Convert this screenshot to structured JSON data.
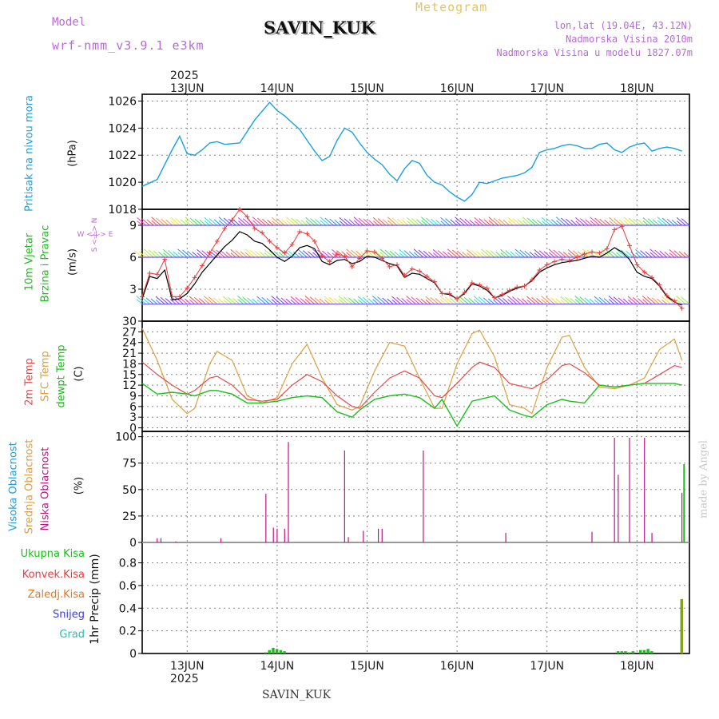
{
  "header": {
    "model_label": "Model",
    "model_name": "wrf-nmm_v3.9.1 e3km",
    "station": "SAVIN_KUK",
    "meteogram": "Meteogram",
    "lonlat": "lon,lat (19.04E, 43.12N)",
    "altitude": "Nadmorska Visina 2010m",
    "model_altitude": "Nadmorska Visina u modelu 1827.07m",
    "footer_station": "SAVIN_KUK",
    "made_by": "made by Angel",
    "year_top": "2025",
    "year_bottom": "2025"
  },
  "colors": {
    "pressure": "#1aa0e0",
    "wind_speed": "#000000",
    "wind_gust": "#e83c3c",
    "temp_2m": "#e84848",
    "temp_sfc": "#dca040",
    "dewpoint": "#18c018",
    "cloud_high": "#1aa0e0",
    "cloud_mid": "#dca040",
    "cloud_low": "#c0108a",
    "precip_total": "#18c018",
    "precip_conv": "#e83c3c",
    "precip_frozen": "#e87820",
    "snow": "#3c3ce0",
    "graupel": "#20c0c0"
  },
  "panels": {
    "pressure": {
      "label": "Pritisak na nivou mora",
      "unit": "(hPa)"
    },
    "wind": {
      "label1": "10m Vjetar",
      "label2": "Brzina i Pravac",
      "unit": "(m/s)",
      "compass": "W <-|-> E",
      "compass_v": "S <-|-> N"
    },
    "temp": {
      "label1": "2m Temp",
      "label2": "SFC Temp",
      "label3": "dewpt Temp",
      "unit": "(C)"
    },
    "cloud": {
      "label1": "Visoka Oblacnost",
      "label2": "Srednja Oblacnost",
      "label3": "Niska Oblacnost",
      "unit": "(%)"
    },
    "precip": {
      "legend": [
        "Ukupna Kisa",
        "Konvek.Kisa",
        "Zaledj.Kisa",
        "Snijeg",
        "Grad"
      ],
      "unit": "1hr Precip (mm)"
    }
  },
  "chart_data": [
    {
      "type": "line",
      "title": "Pritisak na nivou mora",
      "ylabel": "(hPa)",
      "x_unit": "hours from 12 JUN 12:00",
      "ylim": [
        1018,
        1026.5
      ],
      "yticks": [
        1018,
        1020,
        1022,
        1024,
        1026
      ],
      "xticks": [
        "13JUN",
        "14JUN",
        "15JUN",
        "16JUN",
        "17JUN",
        "18JUN"
      ],
      "series": [
        {
          "name": "MSLP",
          "x": [
            0,
            4,
            8,
            10,
            12,
            14,
            16,
            18,
            20,
            22,
            26,
            30,
            34,
            36,
            38,
            40,
            42,
            44,
            46,
            48,
            50,
            52,
            54,
            56,
            58,
            60,
            62,
            64,
            66,
            68,
            70,
            72,
            74,
            76,
            78,
            80,
            82,
            84,
            86,
            88,
            90,
            92,
            94,
            96,
            98,
            100,
            102,
            104,
            106,
            108,
            110,
            112,
            114,
            116,
            118,
            120,
            122,
            124,
            126,
            128,
            130,
            132,
            134,
            136,
            138,
            140,
            142,
            144
          ],
          "values": [
            1019.7,
            1020.2,
            1022.4,
            1023.4,
            1022.1,
            1022.0,
            1022.4,
            1022.9,
            1023.0,
            1022.8,
            1022.9,
            1024.6,
            1025.9,
            1025.3,
            1024.9,
            1024.4,
            1023.9,
            1023.1,
            1022.3,
            1021.6,
            1021.9,
            1023.1,
            1024.0,
            1023.7,
            1022.9,
            1022.2,
            1021.7,
            1021.3,
            1020.6,
            1020.1,
            1021.0,
            1021.6,
            1021.4,
            1020.5,
            1020.0,
            1019.8,
            1019.3,
            1018.9,
            1018.6,
            1019.1,
            1020.0,
            1019.9,
            1020.1,
            1020.3,
            1020.4,
            1020.5,
            1020.7,
            1021.1,
            1022.2,
            1022.4,
            1022.5,
            1022.7,
            1022.8,
            1022.7,
            1022.5,
            1022.5,
            1022.8,
            1022.9,
            1022.4,
            1022.2,
            1022.6,
            1022.8,
            1022.9,
            1022.3,
            1022.5,
            1022.6,
            1022.5,
            1022.3
          ]
        }
      ]
    },
    {
      "type": "line",
      "title": "10m Vjetar Brzina i Pravac",
      "ylabel": "(m/s)",
      "ylim": [
        0,
        10.5
      ],
      "yticks": [
        3,
        6,
        9
      ],
      "series": [
        {
          "name": "wind speed",
          "x": [
            0,
            2,
            4,
            6,
            8,
            10,
            12,
            14,
            16,
            18,
            20,
            22,
            24,
            26,
            28,
            30,
            32,
            34,
            36,
            38,
            40,
            42,
            44,
            46,
            48,
            50,
            52,
            54,
            56,
            58,
            60,
            62,
            64,
            66,
            68,
            70,
            72,
            74,
            76,
            78,
            80,
            82,
            84,
            86,
            88,
            90,
            92,
            94,
            96,
            98,
            100,
            102,
            104,
            106,
            108,
            110,
            112,
            114,
            116,
            118,
            120,
            122,
            124,
            126,
            128,
            130,
            132,
            134,
            136,
            138,
            140,
            142,
            144
          ],
          "values": [
            2.1,
            4.2,
            4.0,
            4.8,
            2.0,
            2.1,
            2.6,
            3.5,
            4.6,
            5.4,
            6.2,
            7.0,
            7.6,
            8.4,
            8.1,
            7.5,
            7.3,
            6.7,
            6.0,
            5.6,
            6.1,
            6.9,
            7.1,
            6.8,
            5.6,
            5.3,
            5.7,
            5.8,
            5.4,
            5.6,
            6.1,
            6.0,
            5.7,
            5.4,
            5.2,
            4.1,
            4.5,
            4.4,
            4.0,
            3.6,
            2.6,
            2.5,
            2.1,
            2.6,
            3.5,
            3.3,
            2.9,
            2.2,
            2.4,
            2.8,
            3.1,
            3.3,
            3.8,
            4.6,
            5.0,
            5.3,
            5.5,
            5.6,
            5.7,
            5.9,
            6.1,
            6.0,
            6.4,
            6.9,
            6.5,
            5.8,
            4.6,
            4.2,
            4.0,
            3.3,
            2.3,
            1.8,
            1.5
          ]
        },
        {
          "name": "wind gust",
          "x": [
            0,
            2,
            4,
            6,
            8,
            10,
            12,
            14,
            16,
            18,
            20,
            22,
            24,
            26,
            28,
            30,
            32,
            34,
            36,
            38,
            40,
            42,
            44,
            46,
            48,
            50,
            52,
            54,
            56,
            58,
            60,
            62,
            64,
            66,
            68,
            70,
            72,
            74,
            76,
            78,
            80,
            82,
            84,
            86,
            88,
            90,
            92,
            94,
            96,
            98,
            100,
            102,
            104,
            106,
            108,
            110,
            112,
            114,
            116,
            118,
            120,
            122,
            124,
            126,
            128,
            130,
            132,
            134,
            136,
            138,
            140,
            142,
            144
          ],
          "values": [
            2.3,
            4.5,
            4.4,
            5.8,
            2.3,
            2.3,
            3.1,
            4.1,
            5.2,
            6.4,
            7.5,
            8.7,
            9.5,
            10.5,
            9.8,
            8.7,
            8.3,
            7.5,
            6.9,
            6.4,
            7.2,
            8.4,
            8.2,
            7.5,
            6.1,
            5.6,
            6.3,
            6.1,
            5.1,
            5.9,
            6.6,
            6.5,
            5.9,
            5.1,
            5.3,
            4.3,
            4.9,
            4.7,
            4.2,
            3.7,
            2.6,
            2.6,
            2.1,
            2.7,
            3.6,
            3.4,
            3.1,
            2.2,
            2.5,
            2.9,
            3.2,
            3.3,
            3.9,
            4.8,
            5.3,
            5.6,
            5.8,
            5.7,
            6.0,
            6.3,
            6.5,
            6.4,
            6.8,
            8.6,
            8.9,
            7.1,
            5.3,
            4.6,
            4.1,
            3.4,
            2.4,
            1.9,
            1.2
          ]
        }
      ]
    },
    {
      "type": "line",
      "title": "2m Temp / SFC Temp / dewpt Temp",
      "ylabel": "(C)",
      "ylim": [
        -1,
        30
      ],
      "yticks": [
        0,
        3,
        6,
        9,
        12,
        15,
        18,
        21,
        24,
        27,
        30
      ],
      "series": [
        {
          "name": "2m Temp",
          "x": [
            0,
            4,
            8,
            12,
            14,
            18,
            20,
            24,
            28,
            32,
            36,
            40,
            44,
            48,
            52,
            56,
            58,
            62,
            66,
            70,
            74,
            78,
            80,
            84,
            88,
            90,
            94,
            98,
            102,
            104,
            108,
            112,
            114,
            118,
            122,
            126,
            130,
            134,
            138,
            142,
            144
          ],
          "values": [
            18.5,
            15.0,
            12.0,
            9.5,
            10.5,
            14.0,
            14.5,
            12.0,
            8.0,
            7.5,
            8.0,
            12.0,
            15.0,
            13.0,
            9.0,
            6.0,
            5.5,
            10.0,
            14.0,
            16.0,
            14.0,
            9.0,
            8.5,
            12.5,
            17.0,
            18.5,
            17.0,
            12.5,
            11.5,
            11.0,
            13.5,
            17.5,
            18.0,
            15.5,
            12.0,
            11.5,
            12.0,
            12.5,
            15.0,
            17.5,
            17.0
          ]
        },
        {
          "name": "SFC Temp",
          "x": [
            0,
            4,
            8,
            12,
            14,
            18,
            20,
            24,
            28,
            32,
            36,
            40,
            44,
            48,
            52,
            56,
            58,
            62,
            66,
            70,
            74,
            78,
            80,
            84,
            88,
            90,
            94,
            98,
            102,
            104,
            108,
            112,
            114,
            118,
            122,
            126,
            130,
            134,
            138,
            142,
            144
          ],
          "values": [
            28.0,
            19.0,
            8.0,
            4.0,
            5.5,
            18.0,
            21.5,
            19.0,
            9.0,
            7.0,
            8.5,
            18.0,
            23.5,
            14.0,
            6.5,
            5.0,
            6.0,
            16.0,
            24.0,
            23.0,
            14.0,
            5.5,
            5.5,
            18.0,
            26.5,
            27.5,
            20.0,
            6.5,
            5.5,
            4.0,
            17.0,
            25.5,
            26.0,
            17.0,
            11.5,
            11.0,
            12.0,
            14.0,
            22.0,
            25.0,
            19.0
          ]
        },
        {
          "name": "dewpt Temp",
          "x": [
            0,
            4,
            8,
            12,
            14,
            18,
            20,
            24,
            28,
            32,
            36,
            40,
            44,
            48,
            52,
            56,
            58,
            62,
            66,
            70,
            74,
            78,
            80,
            84,
            88,
            90,
            94,
            98,
            102,
            104,
            108,
            112,
            114,
            118,
            122,
            126,
            130,
            134,
            138,
            142,
            144
          ],
          "values": [
            12.5,
            9.5,
            10.0,
            9.5,
            9.0,
            10.5,
            10.5,
            9.5,
            7.0,
            7.0,
            7.5,
            8.5,
            9.0,
            8.5,
            4.5,
            3.0,
            5.0,
            8.0,
            9.0,
            9.5,
            8.5,
            5.5,
            8.0,
            0.5,
            7.5,
            8.0,
            9.0,
            5.0,
            3.5,
            3.0,
            6.5,
            8.0,
            7.5,
            7.0,
            12.0,
            11.5,
            12.0,
            12.5,
            12.5,
            12.5,
            12.0
          ]
        }
      ]
    },
    {
      "type": "bar",
      "title": "Visoka / Srednja / Niska Oblacnost",
      "ylabel": "(%)",
      "ylim": [
        0,
        105
      ],
      "yticks": [
        0,
        25,
        50,
        75,
        100
      ],
      "series": [
        {
          "name": "Niska Oblacnost",
          "x": [
            4,
            5,
            9,
            21,
            33,
            35,
            36,
            38,
            39,
            54,
            55,
            59,
            63,
            64,
            75,
            97,
            120,
            126,
            127,
            130,
            134,
            136,
            144
          ],
          "values": [
            4,
            4,
            1,
            4,
            46,
            14,
            13,
            13,
            95,
            87,
            5,
            11,
            13,
            13,
            87,
            9,
            10,
            99,
            64,
            99,
            99,
            9,
            47
          ]
        },
        {
          "name": "Srednja Oblacnost",
          "x": [
            145
          ],
          "values": [
            74
          ]
        }
      ]
    },
    {
      "type": "bar",
      "title": "1hr Precip",
      "ylabel": "1hr Precip (mm)",
      "ylim": [
        0,
        0.98
      ],
      "yticks": [
        0,
        0.2,
        0.4,
        0.6,
        0.8
      ],
      "series": [
        {
          "name": "Ukupna Kisa",
          "x": [
            33,
            34,
            35,
            36,
            37,
            38,
            127,
            128,
            129,
            130,
            131,
            133,
            134,
            135,
            136,
            144
          ],
          "values": [
            0.01,
            0.03,
            0.05,
            0.04,
            0.03,
            0.02,
            0.02,
            0.02,
            0.02,
            0.01,
            0.02,
            0.03,
            0.03,
            0.04,
            0.02,
            0.48
          ]
        }
      ]
    }
  ]
}
